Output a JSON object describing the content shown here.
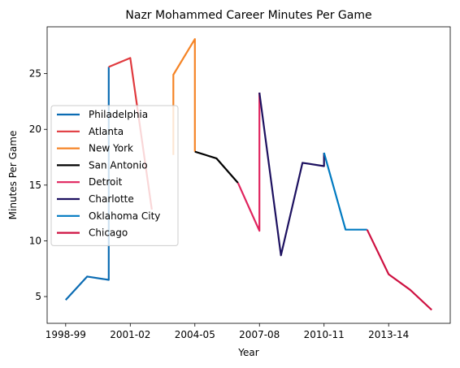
{
  "chart_data": {
    "type": "line",
    "title": "Nazr Mohammed Career Minutes Per Game",
    "xlabel": "Year",
    "ylabel": "Minutes Per Game",
    "x_categories": [
      "1998-99",
      "1999-00",
      "2000-01",
      "2001-02",
      "2002-03",
      "2003-04",
      "2004-05",
      "2005-06",
      "2006-07",
      "2007-08",
      "2008-09",
      "2009-10",
      "2010-11",
      "2011-12",
      "2012-13",
      "2013-14",
      "2014-15",
      "2015-16"
    ],
    "x_tick_labels": [
      "1998-99",
      "2001-02",
      "2004-05",
      "2007-08",
      "2010-11",
      "2013-14"
    ],
    "y_ticks": [
      5,
      10,
      15,
      20,
      25
    ],
    "ylim": [
      2.6,
      29.2
    ],
    "grid": false,
    "legend_position": "center-left",
    "series": [
      {
        "name": "Philadelphia",
        "color": "#0b6cb3",
        "x": [
          "1998-99",
          "1999-00",
          "2000-01",
          "2000-01"
        ],
        "values": [
          4.7,
          6.8,
          6.5,
          25.6
        ]
      },
      {
        "name": "Atlanta",
        "color": "#e03a3e",
        "x": [
          "2000-01",
          "2001-02",
          "2002-03"
        ],
        "values": [
          25.6,
          26.4,
          12.8
        ]
      },
      {
        "name": "New York",
        "color": "#f58426",
        "x": [
          "2003-04",
          "2003-04",
          "2004-05",
          "2004-05"
        ],
        "values": [
          17.7,
          24.9,
          28.1,
          18.0
        ]
      },
      {
        "name": "San Antonio",
        "color": "#000000",
        "x": [
          "2004-05",
          "2005-06",
          "2006-07"
        ],
        "values": [
          18.0,
          17.4,
          15.2
        ]
      },
      {
        "name": "Detroit",
        "color": "#e0245e",
        "x": [
          "2006-07",
          "2007-08",
          "2007-08"
        ],
        "values": [
          15.2,
          10.9,
          23.3
        ]
      },
      {
        "name": "Charlotte",
        "color": "#1d1160",
        "x": [
          "2007-08",
          "2008-09",
          "2009-10",
          "2010-11",
          "2010-11"
        ],
        "values": [
          23.3,
          8.7,
          17.0,
          16.7,
          17.9
        ]
      },
      {
        "name": "Oklahoma City",
        "color": "#007ac1",
        "x": [
          "2010-11",
          "2011-12",
          "2012-13"
        ],
        "values": [
          17.9,
          11.0,
          11.0
        ]
      },
      {
        "name": "Chicago",
        "color": "#ce1141",
        "x": [
          "2012-13",
          "2013-14",
          "2014-15",
          "2015-16"
        ],
        "values": [
          11.0,
          7.0,
          5.6,
          3.8
        ]
      }
    ]
  }
}
